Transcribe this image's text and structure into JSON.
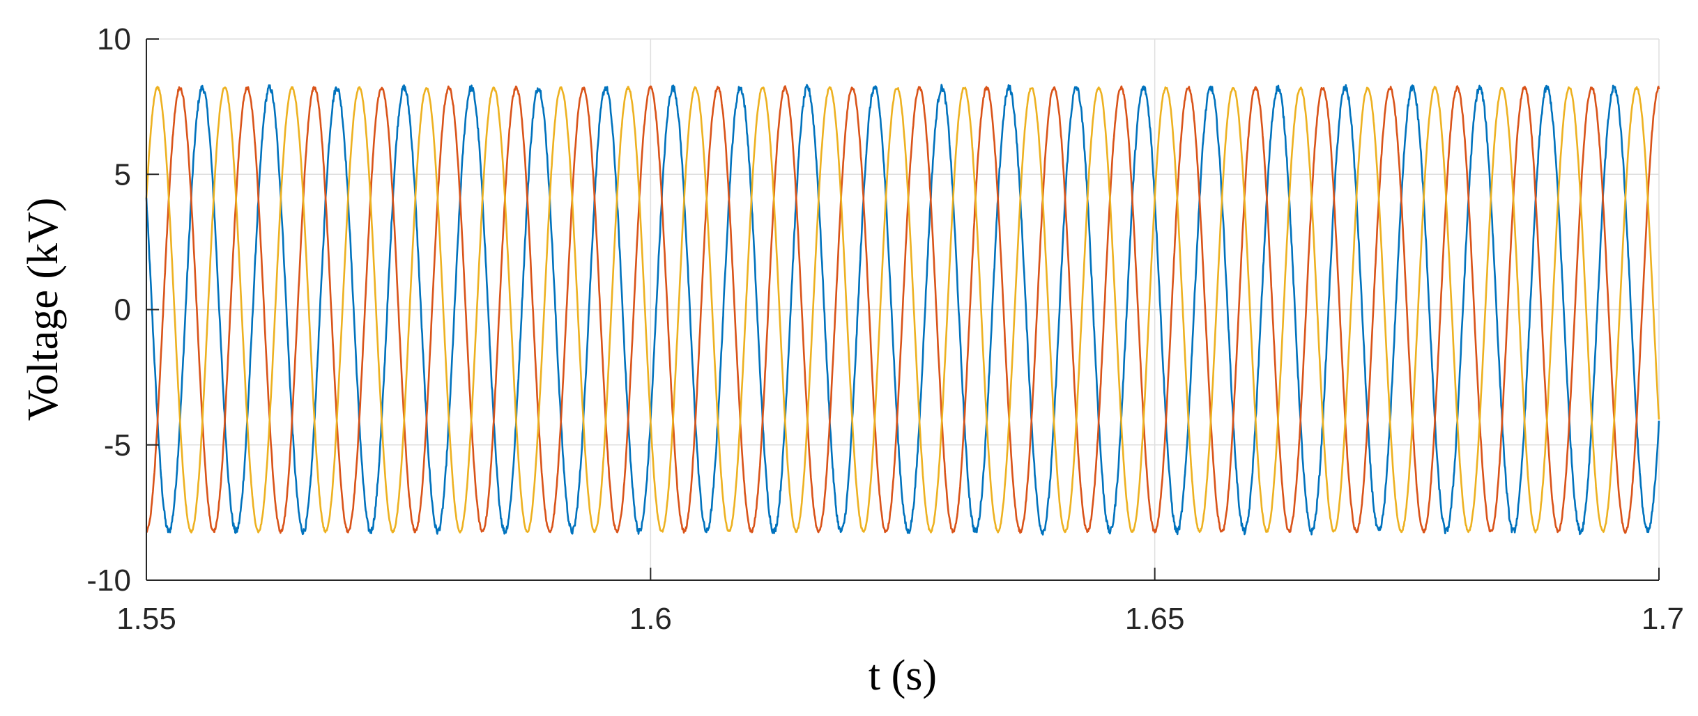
{
  "chart_data": {
    "type": "line",
    "xlabel": "t (s)",
    "ylabel": "Voltage (kV)",
    "xlim": [
      1.55,
      1.7
    ],
    "ylim": [
      -10,
      10
    ],
    "xticks": [
      1.55,
      1.6,
      1.65,
      1.7
    ],
    "xtick_labels": [
      "1.55",
      "1.6",
      "1.65",
      "1.7"
    ],
    "yticks": [
      -10,
      -5,
      0,
      5,
      10
    ],
    "ytick_labels": [
      "-10",
      "-5",
      "0",
      "5",
      "10"
    ],
    "grid": true,
    "series": [
      {
        "color": "#0072BD",
        "amplitude": 8.2,
        "frequency_hz": 150,
        "phase_deg": -30,
        "noise": 0.12
      },
      {
        "color": "#D95319",
        "amplitude": 8.2,
        "frequency_hz": 150,
        "phase_deg": 90,
        "noise": 0.06
      },
      {
        "color": "#EDB120",
        "amplitude": 8.2,
        "frequency_hz": 150,
        "phase_deg": -150,
        "noise": 0.04
      }
    ]
  }
}
